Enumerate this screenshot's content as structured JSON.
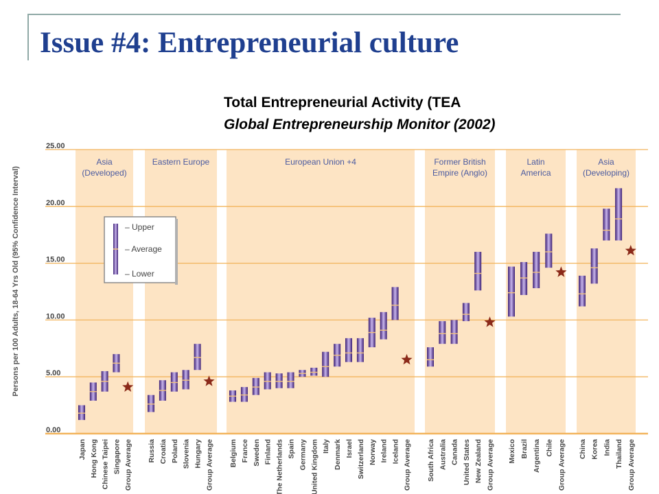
{
  "slide": {
    "title": "Issue #4: Entrepreneurial culture"
  },
  "chart_data": {
    "type": "range",
    "title": "Total Entrepreneurial Activity (TEA",
    "subtitle": "Global Entrepreneurship Monitor (2002)",
    "ylabel": "Persons per 100 Adults, 18-64 Yrs Old (95% Confidence Interval)",
    "ylim": [
      0,
      25
    ],
    "yticks": [
      "0.00",
      "5.00",
      "10.00",
      "15.00",
      "20.00",
      "25.00"
    ],
    "grid": true,
    "legend": {
      "placement": "upper-left",
      "labels": [
        "– Upper",
        "– Average",
        "– Lower"
      ]
    },
    "groups": [
      {
        "name": "Asia (Developed)",
        "countries": [
          {
            "name": "Japan",
            "low": 1.2,
            "avg": 1.8,
            "high": 2.5
          },
          {
            "name": "Hong Kong",
            "low": 2.9,
            "avg": 3.7,
            "high": 4.5
          },
          {
            "name": "Chinese Taipei",
            "low": 3.7,
            "avg": 4.6,
            "high": 5.5
          },
          {
            "name": "Singapore",
            "low": 5.4,
            "avg": 6.2,
            "high": 7.0
          }
        ],
        "group_average": 4.1
      },
      {
        "name": "Eastern Europe",
        "countries": [
          {
            "name": "Russia",
            "low": 1.9,
            "avg": 2.6,
            "high": 3.4
          },
          {
            "name": "Croatia",
            "low": 2.9,
            "avg": 3.8,
            "high": 4.7
          },
          {
            "name": "Poland",
            "low": 3.7,
            "avg": 4.5,
            "high": 5.4
          },
          {
            "name": "Slovenia",
            "low": 3.9,
            "avg": 4.7,
            "high": 5.6
          },
          {
            "name": "Hungary",
            "low": 5.6,
            "avg": 6.7,
            "high": 7.9
          }
        ],
        "group_average": 4.6
      },
      {
        "name": "European Union +4",
        "countries": [
          {
            "name": "Belgium",
            "low": 2.8,
            "avg": 3.3,
            "high": 3.8
          },
          {
            "name": "France",
            "low": 2.8,
            "avg": 3.4,
            "high": 4.1
          },
          {
            "name": "Sweden",
            "low": 3.4,
            "avg": 4.1,
            "high": 4.9
          },
          {
            "name": "Finland",
            "low": 3.9,
            "avg": 4.6,
            "high": 5.4
          },
          {
            "name": "The Netherlands",
            "low": 4.0,
            "avg": 4.6,
            "high": 5.3
          },
          {
            "name": "Spain",
            "low": 4.0,
            "avg": 4.6,
            "high": 5.4
          },
          {
            "name": "Germany",
            "low": 5.0,
            "avg": 5.3,
            "high": 5.6
          },
          {
            "name": "United Kingdom",
            "low": 5.1,
            "avg": 5.4,
            "high": 5.8
          },
          {
            "name": "Italy",
            "low": 5.0,
            "avg": 5.9,
            "high": 7.2
          },
          {
            "name": "Denmark",
            "low": 5.9,
            "avg": 6.9,
            "high": 7.9
          },
          {
            "name": "Israel",
            "low": 6.3,
            "avg": 7.1,
            "high": 8.4
          },
          {
            "name": "Switzerland",
            "low": 6.3,
            "avg": 7.1,
            "high": 8.4
          },
          {
            "name": "Norway",
            "low": 7.6,
            "avg": 8.9,
            "high": 10.2
          },
          {
            "name": "Ireland",
            "low": 8.3,
            "avg": 9.1,
            "high": 10.7
          },
          {
            "name": "Iceland",
            "low": 10.0,
            "avg": 11.3,
            "high": 12.9
          }
        ],
        "group_average": 6.5
      },
      {
        "name": "Former British Empire (Anglo)",
        "countries": [
          {
            "name": "South Africa",
            "low": 5.9,
            "avg": 6.5,
            "high": 7.6
          },
          {
            "name": "Australia",
            "low": 7.9,
            "avg": 8.8,
            "high": 9.9
          },
          {
            "name": "Canada",
            "low": 7.9,
            "avg": 8.8,
            "high": 10.0
          },
          {
            "name": "United States",
            "low": 9.9,
            "avg": 10.5,
            "high": 11.5
          },
          {
            "name": "New Zealand",
            "low": 12.6,
            "avg": 14.1,
            "high": 16.0
          }
        ],
        "group_average": 9.8
      },
      {
        "name": "Latin America",
        "countries": [
          {
            "name": "Mexico",
            "low": 10.3,
            "avg": 12.4,
            "high": 14.7
          },
          {
            "name": "Brazil",
            "low": 12.2,
            "avg": 13.7,
            "high": 15.1
          },
          {
            "name": "Argentina",
            "low": 12.8,
            "avg": 14.2,
            "high": 16.0
          },
          {
            "name": "Chile",
            "low": 14.6,
            "avg": 16.0,
            "high": 17.6
          }
        ],
        "group_average": 14.2
      },
      {
        "name": "Asia (Developing)",
        "countries": [
          {
            "name": "China",
            "low": 11.2,
            "avg": 12.3,
            "high": 13.9
          },
          {
            "name": "Korea",
            "low": 13.2,
            "avg": 14.6,
            "high": 16.3
          },
          {
            "name": "India",
            "low": 17.0,
            "avg": 17.9,
            "high": 19.8
          },
          {
            "name": "Thailand",
            "low": 17.0,
            "avg": 18.9,
            "high": 21.6
          }
        ],
        "group_average": 16.1
      }
    ],
    "group_average_label": "Group Average",
    "colors": {
      "panel": "#fde4c4",
      "grid": "#f2b45c",
      "bar_dark": "#3a1d73",
      "bar_light": "#c9b6ec",
      "star": "#8b2a1a",
      "axis_text": "#444444",
      "group_label": "#4a5aa0"
    }
  }
}
